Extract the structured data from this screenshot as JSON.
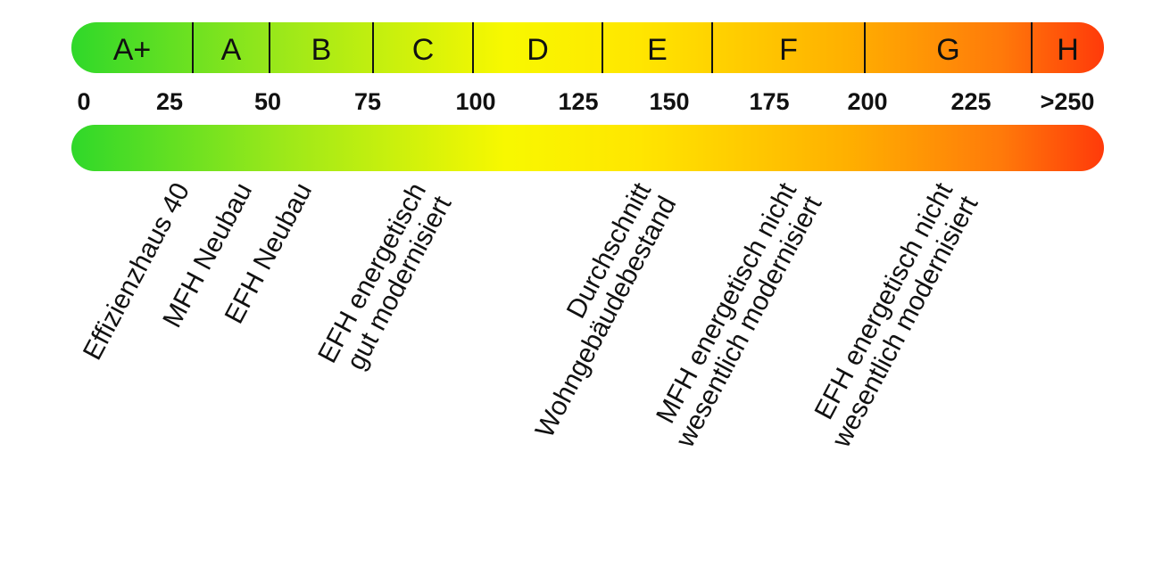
{
  "classes": [
    "A+",
    "A",
    "B",
    "C",
    "D",
    "E",
    "F",
    "G",
    "H"
  ],
  "scale": [
    "0",
    "25",
    "50",
    "75",
    "100",
    "125",
    "150",
    "175",
    "200",
    "225",
    ">250"
  ],
  "labels": [
    {
      "lines": [
        "Effizienzhaus 40"
      ]
    },
    {
      "lines": [
        "MFH Neubau"
      ]
    },
    {
      "lines": [
        "EFH Neubau"
      ]
    },
    {
      "lines": [
        "EFH energetisch",
        "gut modernisiert"
      ]
    },
    {
      "lines": [
        "Durchschnitt",
        "Wohngebäudebestand"
      ]
    },
    {
      "lines": [
        "MFH energetisch nicht",
        "wesentlich modernisiert"
      ]
    },
    {
      "lines": [
        "EFH energetisch nicht",
        "wesentlich modernisiert"
      ]
    }
  ]
}
